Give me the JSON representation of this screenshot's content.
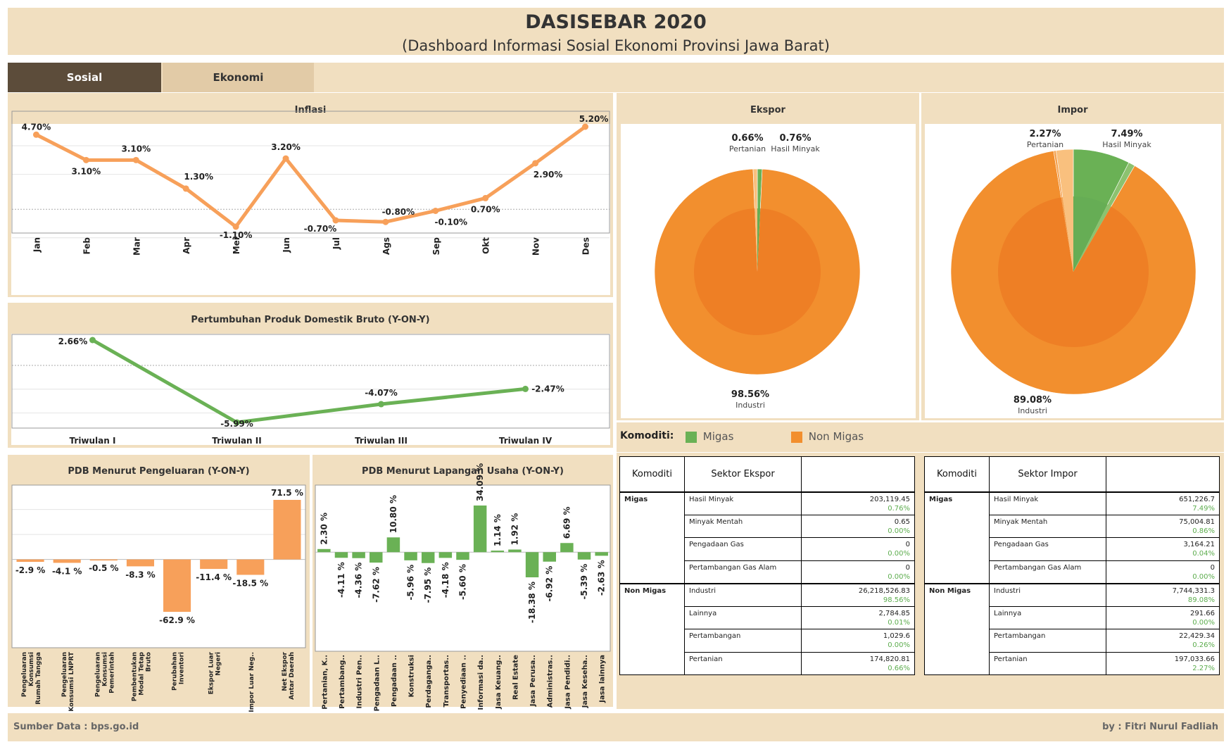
{
  "header": {
    "title": "DASISEBAR 2020",
    "subtitle": "(Dashboard Informasi Sosial Ekonomi Provinsi Jawa Barat)"
  },
  "tabs": [
    {
      "label": "Sosial",
      "active": true
    },
    {
      "label": "Ekonomi",
      "active": false
    }
  ],
  "colors": {
    "background": "#f1dfc0",
    "orange": "#f7a05a",
    "pie_orange": "#f28f2e",
    "pie_inner_orange": "#ee7f25",
    "green": "#6ab155",
    "active_tab": "#5c4c3a"
  },
  "footer": {
    "source": "Sumber Data : bps.go.id",
    "author": "by : Fitri Nurul Fadliah"
  },
  "legend": {
    "label": "Komoditi:",
    "items": [
      {
        "name": "Migas",
        "color": "#6ab155"
      },
      {
        "name": "Non Migas",
        "color": "#f28f2e"
      }
    ]
  },
  "chart_data": [
    {
      "id": "inflasi",
      "type": "line",
      "title": "Inflasi",
      "categories": [
        "Jan",
        "Feb",
        "Mar",
        "Apr",
        "Mei",
        "Jun",
        "Jul",
        "Ags",
        "Sep",
        "Okt",
        "Nov",
        "Des"
      ],
      "values": [
        4.7,
        3.1,
        3.1,
        1.3,
        -1.1,
        3.2,
        -0.7,
        -0.8,
        -0.1,
        0.7,
        2.9,
        5.2
      ],
      "labels": [
        "4.70%",
        "3.10%",
        "3.10%",
        "1.30%",
        "-1.10%",
        "3.20%",
        "-0.70%",
        "-0.80%",
        "-0.10%",
        "0.70%",
        "2.90%",
        "5.20%"
      ],
      "ylim": [
        -1.1,
        5.2
      ],
      "color": "#f7a05a"
    },
    {
      "id": "pdrb",
      "type": "line",
      "title": "Pertumbuhan Produk Domestik Bruto (Y-ON-Y)",
      "categories": [
        "Triwulan I",
        "Triwulan II",
        "Triwulan III",
        "Triwulan IV"
      ],
      "values": [
        2.66,
        -5.99,
        -4.07,
        -2.47
      ],
      "labels": [
        "2.66%",
        "-5.99%",
        "-4.07%",
        "-2.47%"
      ],
      "ylim": [
        -5.99,
        2.66
      ],
      "color": "#6ab155"
    },
    {
      "id": "ekspor",
      "type": "pie",
      "title": "Ekspor",
      "slices": [
        {
          "name": "Hasil Minyak",
          "value": 0.76,
          "label": "0.76%",
          "color": "#6ab155"
        },
        {
          "name": "Industri",
          "value": 98.56,
          "label": "98.56%",
          "color": "#f28f2e"
        },
        {
          "name": "Pertanian",
          "value": 0.66,
          "label": "0.66%",
          "color": "#f9c07e"
        }
      ]
    },
    {
      "id": "impor",
      "type": "pie",
      "title": "Impor",
      "slices": [
        {
          "name": "Hasil Minyak",
          "value": 7.49,
          "label": "7.49%",
          "color": "#6ab155"
        },
        {
          "name": "",
          "value": 0.86,
          "label": "",
          "color": "#8cc26f"
        },
        {
          "name": "Industri",
          "value": 89.08,
          "label": "89.08%",
          "color": "#f28f2e"
        },
        {
          "name": "",
          "value": 0.31,
          "label": "",
          "color": "#f4a250"
        },
        {
          "name": "Pertanian",
          "value": 2.27,
          "label": "2.27%",
          "color": "#f9c07e"
        }
      ]
    },
    {
      "id": "pengeluaran",
      "type": "bar",
      "title": "PDB Menurut Pengeluaran (Y-ON-Y)",
      "categories": [
        [
          "Pengeluaran",
          "Konsumsi",
          "Rumah Tangga"
        ],
        [
          "Pengeluaran",
          "Konsumsi LNPRT"
        ],
        [
          "Pengeluaran",
          "Konsumsi",
          "Pemerintah"
        ],
        [
          "Pembentukan",
          "Modal Tetap",
          "Bruto"
        ],
        [
          "Perubahan",
          "Inventori"
        ],
        [
          "Ekspor Luar",
          "Negeri"
        ],
        [
          "Impor Luar Neg.."
        ],
        [
          "Net Ekspor",
          "Antar Daerah"
        ]
      ],
      "values": [
        -2.9,
        -4.1,
        -0.5,
        -8.3,
        -62.9,
        -11.4,
        -18.5,
        71.5
      ],
      "labels": [
        "-2.9 %",
        "-4.1 %",
        "-0.5 %",
        "-8.3 %",
        "-62.9 %",
        "-11.4 %",
        "-18.5 %",
        "71.5 %"
      ],
      "ylim": [
        -62.9,
        71.5
      ],
      "color": "#f7a05a"
    },
    {
      "id": "lapangan",
      "type": "bar",
      "title": "PDB Menurut Lapangan Usaha (Y-ON-Y)",
      "categories": [
        "Pertanian, K..",
        "Pertambang..",
        "Industri Pen..",
        "Pengadaan L..",
        "Pengadaan ..",
        "Konstruksi",
        "Perdaganga..",
        "Transportas..",
        "Penyediaan ..",
        "Informasi da..",
        "Jasa Keuang..",
        "Real Estate",
        "Jasa Perusa..",
        "Administras..",
        "Jasa Pendidi..",
        "Jasa Keseha..",
        "Jasa lainnya"
      ],
      "values": [
        2.3,
        -4.11,
        -4.36,
        -7.62,
        10.8,
        -5.96,
        -7.95,
        -4.18,
        -5.6,
        34.09,
        1.14,
        1.92,
        -18.38,
        -6.92,
        6.69,
        -5.39,
        -2.63
      ],
      "labels": [
        "2.30 %",
        "-4.11 %",
        "-4.36 %",
        "-7.62 %",
        "10.80 %",
        "-5.96 %",
        "-7.95 %",
        "-4.18 %",
        "-5.60 %",
        "34.09 %",
        "1.14 %",
        "1.92 %",
        "-18.38 %",
        "-6.92 %",
        "6.69 %",
        "-5.39 %",
        "-2.63 %"
      ],
      "ylim": [
        -18.38,
        34.09
      ],
      "color": "#6ab155"
    }
  ],
  "tables": {
    "ekspor": {
      "headers": [
        "Komoditi",
        "Sektor Ekspor",
        ""
      ],
      "groups": [
        {
          "name": "Migas",
          "rows": [
            {
              "sektor": "Hasil Minyak",
              "value": "203,119.45",
              "pct": "0.76%"
            },
            {
              "sektor": "Minyak Mentah",
              "value": "0.65",
              "pct": "0.00%"
            },
            {
              "sektor": "Pengadaan Gas",
              "value": "0",
              "pct": "0.00%"
            },
            {
              "sektor": "Pertambangan Gas Alam",
              "value": "0",
              "pct": "0.00%"
            }
          ]
        },
        {
          "name": "Non Migas",
          "rows": [
            {
              "sektor": "Industri",
              "value": "26,218,526.83",
              "pct": "98.56%"
            },
            {
              "sektor": "Lainnya",
              "value": "2,784.85",
              "pct": "0.01%"
            },
            {
              "sektor": "Pertambangan",
              "value": "1,029.6",
              "pct": "0.00%"
            },
            {
              "sektor": "Pertanian",
              "value": "174,820.81",
              "pct": "0.66%"
            }
          ]
        }
      ]
    },
    "impor": {
      "headers": [
        "Komoditi",
        "Sektor Impor",
        ""
      ],
      "groups": [
        {
          "name": "Migas",
          "rows": [
            {
              "sektor": "Hasil Minyak",
              "value": "651,226.7",
              "pct": "7.49%"
            },
            {
              "sektor": "Minyak Mentah",
              "value": "75,004.81",
              "pct": "0.86%"
            },
            {
              "sektor": "Pengadaan Gas",
              "value": "3,164.21",
              "pct": "0.04%"
            },
            {
              "sektor": "Pertambangan Gas Alam",
              "value": "0",
              "pct": "0.00%"
            }
          ]
        },
        {
          "name": "Non Migas",
          "rows": [
            {
              "sektor": "Industri",
              "value": "7,744,331.3",
              "pct": "89.08%"
            },
            {
              "sektor": "Lainnya",
              "value": "291.66",
              "pct": "0.00%"
            },
            {
              "sektor": "Pertambangan",
              "value": "22,429.34",
              "pct": "0.26%"
            },
            {
              "sektor": "Pertanian",
              "value": "197,033.66",
              "pct": "2.27%"
            }
          ]
        }
      ]
    }
  }
}
